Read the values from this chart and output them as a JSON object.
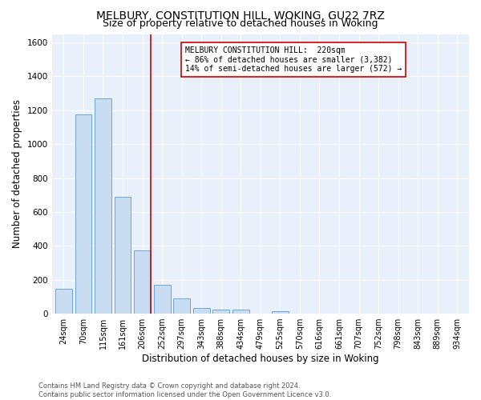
{
  "title": "MELBURY, CONSTITUTION HILL, WOKING, GU22 7RZ",
  "subtitle": "Size of property relative to detached houses in Woking",
  "xlabel": "Distribution of detached houses by size in Woking",
  "ylabel": "Number of detached properties",
  "bar_labels": [
    "24sqm",
    "70sqm",
    "115sqm",
    "161sqm",
    "206sqm",
    "252sqm",
    "297sqm",
    "343sqm",
    "388sqm",
    "434sqm",
    "479sqm",
    "525sqm",
    "570sqm",
    "616sqm",
    "661sqm",
    "707sqm",
    "752sqm",
    "798sqm",
    "843sqm",
    "889sqm",
    "934sqm"
  ],
  "bar_values": [
    148,
    1175,
    1270,
    690,
    375,
    170,
    88,
    35,
    25,
    22,
    0,
    15,
    0,
    0,
    0,
    0,
    0,
    0,
    0,
    0,
    0
  ],
  "bar_color": "#c9ddf2",
  "bar_edge_color": "#5b9bd5",
  "vline_color": "#cc0000",
  "annotation_text": "MELBURY CONSTITUTION HILL:  220sqm\n← 86% of detached houses are smaller (3,382)\n14% of semi-detached houses are larger (572) →",
  "annotation_box_color": "#ffffff",
  "annotation_box_edge": "#cc0000",
  "ylim": [
    0,
    1650
  ],
  "yticks": [
    0,
    200,
    400,
    600,
    800,
    1000,
    1200,
    1400,
    1600
  ],
  "footnote": "Contains HM Land Registry data © Crown copyright and database right 2024.\nContains public sector information licensed under the Open Government Licence v3.0.",
  "bg_color": "#e8f0fb",
  "title_fontsize": 10,
  "subtitle_fontsize": 9,
  "tick_fontsize": 7,
  "ylabel_fontsize": 8.5,
  "xlabel_fontsize": 8.5,
  "footnote_fontsize": 6,
  "vline_pos": 4.425
}
